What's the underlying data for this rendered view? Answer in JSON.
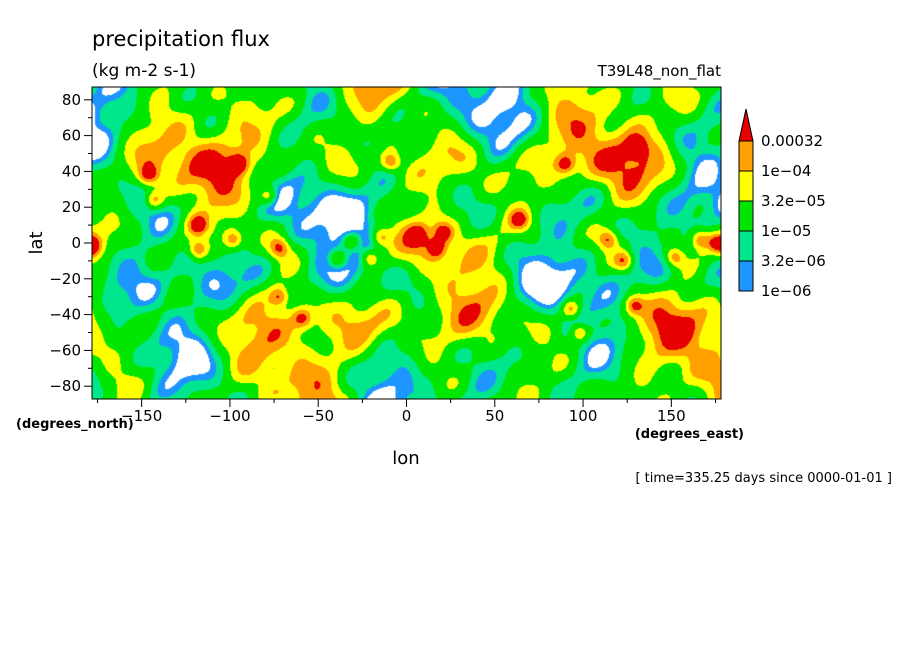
{
  "chart_data": {
    "type": "heatmap",
    "title": "precipitation flux",
    "subtitle": "(kg m-2 s-1)",
    "dataset_label": "T39L48_non_flat",
    "xlabel": "lon",
    "ylabel": "lat",
    "x_units": "(degrees_east)",
    "y_units": "(degrees_north)",
    "time_label": "[ time=335.25 days since 0000-01-01 ]",
    "xlim": [
      -178.125,
      178.125
    ],
    "ylim": [
      -87.16,
      87.16
    ],
    "x_ticks": [
      {
        "value": -150,
        "label": "−150"
      },
      {
        "value": -100,
        "label": "−100"
      },
      {
        "value": -50,
        "label": "−50"
      },
      {
        "value": 0,
        "label": "0"
      },
      {
        "value": 50,
        "label": "50"
      },
      {
        "value": 100,
        "label": "100"
      },
      {
        "value": 150,
        "label": "150"
      }
    ],
    "y_ticks": [
      {
        "value": 80,
        "label": "80"
      },
      {
        "value": 60,
        "label": "60"
      },
      {
        "value": 40,
        "label": "40"
      },
      {
        "value": 20,
        "label": "20"
      },
      {
        "value": 0,
        "label": "0"
      },
      {
        "value": -20,
        "label": "−20"
      },
      {
        "value": -40,
        "label": "−40"
      },
      {
        "value": -60,
        "label": "−60"
      },
      {
        "value": -80,
        "label": "−80"
      }
    ],
    "levels": [
      1e-06,
      3.2e-06,
      1e-05,
      3.2e-05,
      0.0001,
      0.00032
    ],
    "level_labels": [
      "1e−06",
      "3.2e−06",
      "1e−05",
      "3.2e−05",
      "1e−04",
      "0.00032"
    ],
    "colors": [
      "#ffffff",
      "#1e96ff",
      "#00e68c",
      "#00e600",
      "#ffff00",
      "#ffa000",
      "#e60000"
    ],
    "colorbar_orientation": "vertical-right",
    "grid": false
  }
}
